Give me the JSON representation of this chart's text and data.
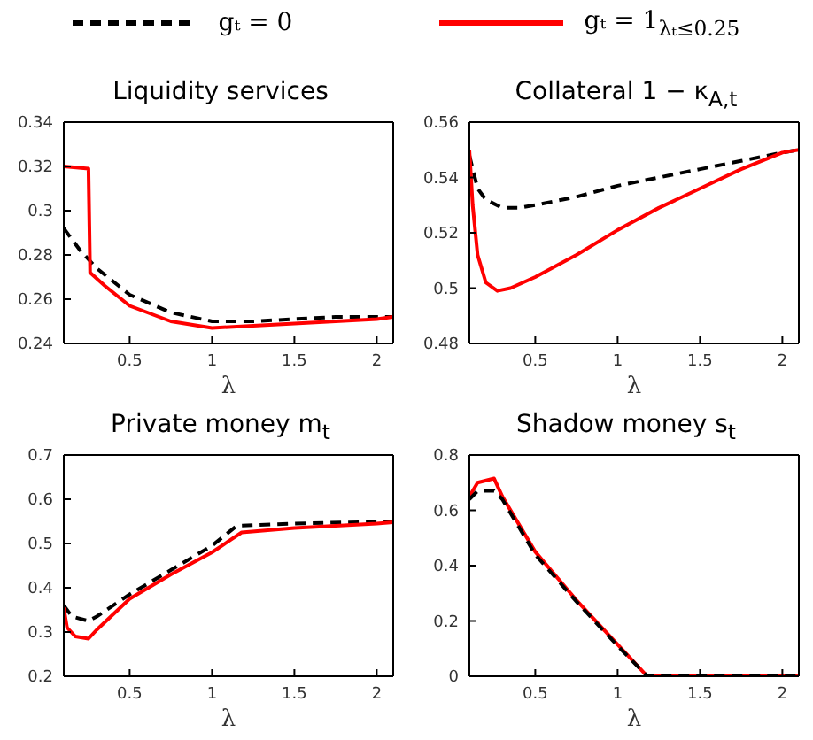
{
  "chart_data": [
    {
      "type": "line",
      "title": "Liquidity services",
      "xlabel": "λ",
      "legend": "top",
      "xlim": [
        0.1,
        2.1
      ],
      "xticks": [
        0.5,
        1,
        1.5,
        2
      ],
      "ylim": [
        0.24,
        0.34
      ],
      "yticks": [
        0.24,
        0.26,
        0.28,
        0.3,
        0.32,
        0.34
      ],
      "grid": false,
      "series": [
        {
          "name": "gₜ = 0",
          "color": "#000000",
          "line_style": "dashed",
          "x": [
            0.1,
            0.2,
            0.3,
            0.5,
            0.75,
            1,
            1.25,
            1.5,
            1.75,
            2,
            2.1
          ],
          "values": [
            0.292,
            0.282,
            0.274,
            0.262,
            0.254,
            0.25,
            0.25,
            0.251,
            0.252,
            0.252,
            0.252
          ]
        },
        {
          "name": "gₜ = 1$_{λₜ≤0.25}$",
          "color": "#ff0000",
          "line_style": "solid",
          "x": [
            0.1,
            0.25,
            0.26,
            0.35,
            0.5,
            0.75,
            1,
            1.25,
            1.5,
            1.75,
            2,
            2.1
          ],
          "values": [
            0.32,
            0.319,
            0.272,
            0.266,
            0.257,
            0.25,
            0.247,
            0.248,
            0.249,
            0.25,
            0.251,
            0.252
          ]
        }
      ]
    },
    {
      "type": "line",
      "title": "Collateral 1 − κ$_{A,t}$",
      "xlabel": "λ",
      "xlim": [
        0.1,
        2.1
      ],
      "xticks": [
        0.5,
        1,
        1.5,
        2
      ],
      "ylim": [
        0.48,
        0.56
      ],
      "yticks": [
        0.48,
        0.5,
        0.52,
        0.54,
        0.56
      ],
      "grid": false,
      "series": [
        {
          "color": "#000000",
          "line_style": "dashed",
          "x": [
            0.1,
            0.15,
            0.2,
            0.3,
            0.4,
            0.5,
            0.75,
            1,
            1.25,
            1.5,
            1.75,
            2,
            2.1
          ],
          "values": [
            0.548,
            0.536,
            0.532,
            0.529,
            0.529,
            0.53,
            0.533,
            0.537,
            0.54,
            0.543,
            0.546,
            0.549,
            0.55
          ]
        },
        {
          "color": "#ff0000",
          "line_style": "solid",
          "x": [
            0.1,
            0.12,
            0.15,
            0.2,
            0.27,
            0.35,
            0.5,
            0.75,
            1,
            1.25,
            1.5,
            1.75,
            2,
            2.1
          ],
          "values": [
            0.55,
            0.53,
            0.512,
            0.502,
            0.499,
            0.5,
            0.504,
            0.512,
            0.521,
            0.529,
            0.536,
            0.543,
            0.549,
            0.55
          ]
        }
      ]
    },
    {
      "type": "line",
      "title": "Private money m$_{t}$",
      "xlabel": "λ",
      "xlim": [
        0.1,
        2.1
      ],
      "xticks": [
        0.5,
        1,
        1.5,
        2
      ],
      "ylim": [
        0.2,
        0.7
      ],
      "yticks": [
        0.2,
        0.3,
        0.4,
        0.5,
        0.6,
        0.7
      ],
      "grid": false,
      "series": [
        {
          "color": "#000000",
          "line_style": "dashed",
          "x": [
            0.1,
            0.15,
            0.25,
            0.3,
            0.5,
            0.75,
            1,
            1.15,
            1.5,
            2,
            2.1
          ],
          "values": [
            0.36,
            0.335,
            0.325,
            0.335,
            0.385,
            0.44,
            0.495,
            0.54,
            0.545,
            0.549,
            0.55
          ]
        },
        {
          "color": "#ff0000",
          "line_style": "solid",
          "x": [
            0.1,
            0.12,
            0.17,
            0.25,
            0.3,
            0.5,
            0.75,
            1,
            1.18,
            1.5,
            2,
            2.1
          ],
          "values": [
            0.355,
            0.31,
            0.29,
            0.285,
            0.305,
            0.375,
            0.43,
            0.48,
            0.525,
            0.535,
            0.545,
            0.548
          ]
        }
      ]
    },
    {
      "type": "line",
      "title": "Shadow money s$_{t}$",
      "xlabel": "λ",
      "xlim": [
        0.1,
        2.1
      ],
      "xticks": [
        0.5,
        1,
        1.5,
        2
      ],
      "ylim": [
        0,
        0.8
      ],
      "yticks": [
        0,
        0.2,
        0.4,
        0.6,
        0.8
      ],
      "grid": false,
      "series": [
        {
          "color": "#ff0000",
          "line_style": "solid",
          "x": [
            0.1,
            0.15,
            0.25,
            0.3,
            0.5,
            0.75,
            1,
            1.18,
            2.1
          ],
          "values": [
            0.65,
            0.7,
            0.715,
            0.65,
            0.45,
            0.275,
            0.115,
            0,
            0
          ]
        },
        {
          "color": "#000000",
          "line_style": "dashed",
          "x": [
            0.1,
            0.15,
            0.25,
            0.3,
            0.5,
            0.75,
            1,
            1.18,
            2.1
          ],
          "values": [
            0.64,
            0.67,
            0.67,
            0.64,
            0.44,
            0.27,
            0.11,
            0,
            0
          ]
        }
      ]
    }
  ]
}
